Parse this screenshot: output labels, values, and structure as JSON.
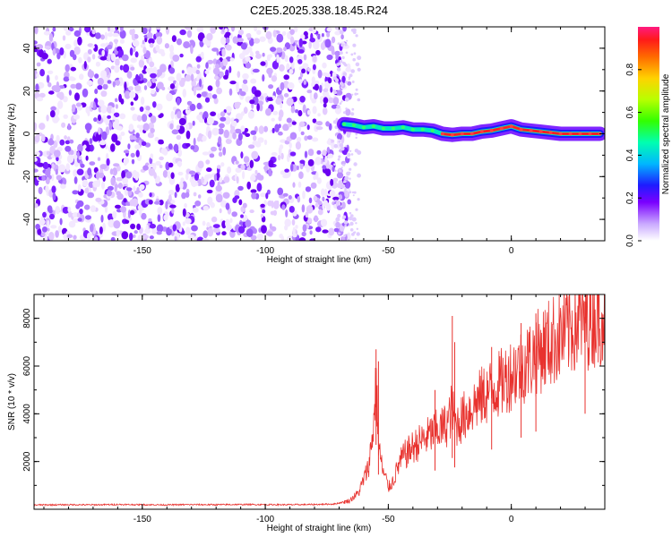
{
  "chart_data": [
    {
      "type": "heatmap",
      "title": "C2E5.2025.338.18.45.R24",
      "xlabel": "Height of straight line (km)",
      "ylabel": "Frequency (Hz)",
      "xlim": [
        -194,
        38
      ],
      "ylim": [
        -50,
        50
      ],
      "xticks": [
        -150,
        -100,
        -50,
        0
      ],
      "yticks": [
        -40,
        -20,
        0,
        20,
        40
      ],
      "noise_region_x": [
        -194,
        -68
      ],
      "signal_trace": {
        "x": [
          -68,
          -64,
          -60,
          -56,
          -52,
          -48,
          -44,
          -40,
          -36,
          -32,
          -28,
          -24,
          -20,
          -16,
          -12,
          -8,
          -4,
          0,
          4,
          8,
          12,
          16,
          20,
          24,
          28,
          32,
          36
        ],
        "freq": [
          4.5,
          4,
          3,
          3.5,
          2.5,
          2.5,
          3,
          2,
          2,
          1.5,
          0,
          -0.5,
          0,
          0,
          1,
          1.5,
          2.5,
          3.5,
          2,
          1.5,
          1,
          0.5,
          0,
          0,
          0,
          0,
          0
        ]
      },
      "colorbar": {
        "label": "Normalized spectral amplitude",
        "ticks": [
          "0.0",
          "0.2",
          "0.4",
          "0.6",
          "0.8"
        ],
        "range": [
          0,
          1
        ]
      }
    },
    {
      "type": "line",
      "xlabel": "Height of straight line (km)",
      "ylabel": "SNR (10 * v/v)",
      "xlim": [
        -194,
        38
      ],
      "ylim": [
        0,
        9000
      ],
      "xticks": [
        -150,
        -100,
        -50,
        0
      ],
      "yticks": [
        2000,
        4000,
        6000,
        8000
      ],
      "series": [
        {
          "name": "SNR",
          "color": "#e8322e",
          "x": [
            -194,
            -180,
            -170,
            -160,
            -150,
            -140,
            -130,
            -120,
            -110,
            -100,
            -90,
            -80,
            -72,
            -66,
            -62,
            -58,
            -57,
            -56,
            -55,
            -54,
            -53,
            -52,
            -51,
            -50,
            -48,
            -46,
            -44,
            -40,
            -36,
            -32,
            -28,
            -26,
            -25,
            -24,
            -23,
            -22,
            -20,
            -16,
            -12,
            -8,
            -4,
            0,
            4,
            8,
            12,
            16,
            20,
            24,
            28,
            32,
            36,
            38
          ],
          "y": [
            180,
            190,
            185,
            200,
            190,
            185,
            195,
            190,
            200,
            195,
            190,
            200,
            220,
            350,
            700,
            1800,
            2600,
            3500,
            5400,
            2900,
            2000,
            1500,
            1300,
            900,
            1200,
            1800,
            2200,
            2600,
            2900,
            3200,
            3400,
            3600,
            3900,
            4300,
            3500,
            3600,
            3800,
            4300,
            4700,
            5000,
            5300,
            5700,
            6000,
            6300,
            6700,
            7000,
            7300,
            7600,
            7900,
            8100,
            8300,
            8400
          ],
          "spikes": [
            {
              "x": -55,
              "y": 6700
            },
            {
              "x": -54,
              "y": 6200
            },
            {
              "x": -24,
              "y": 8100
            },
            {
              "x": -23,
              "y": 7000
            },
            {
              "x": -31,
              "y": 5000
            },
            {
              "x": -8,
              "y": 6800
            },
            {
              "x": 4,
              "y": 7800
            },
            {
              "x": 10,
              "y": 8200
            },
            {
              "x": 30,
              "y": 8700
            }
          ]
        }
      ]
    }
  ]
}
